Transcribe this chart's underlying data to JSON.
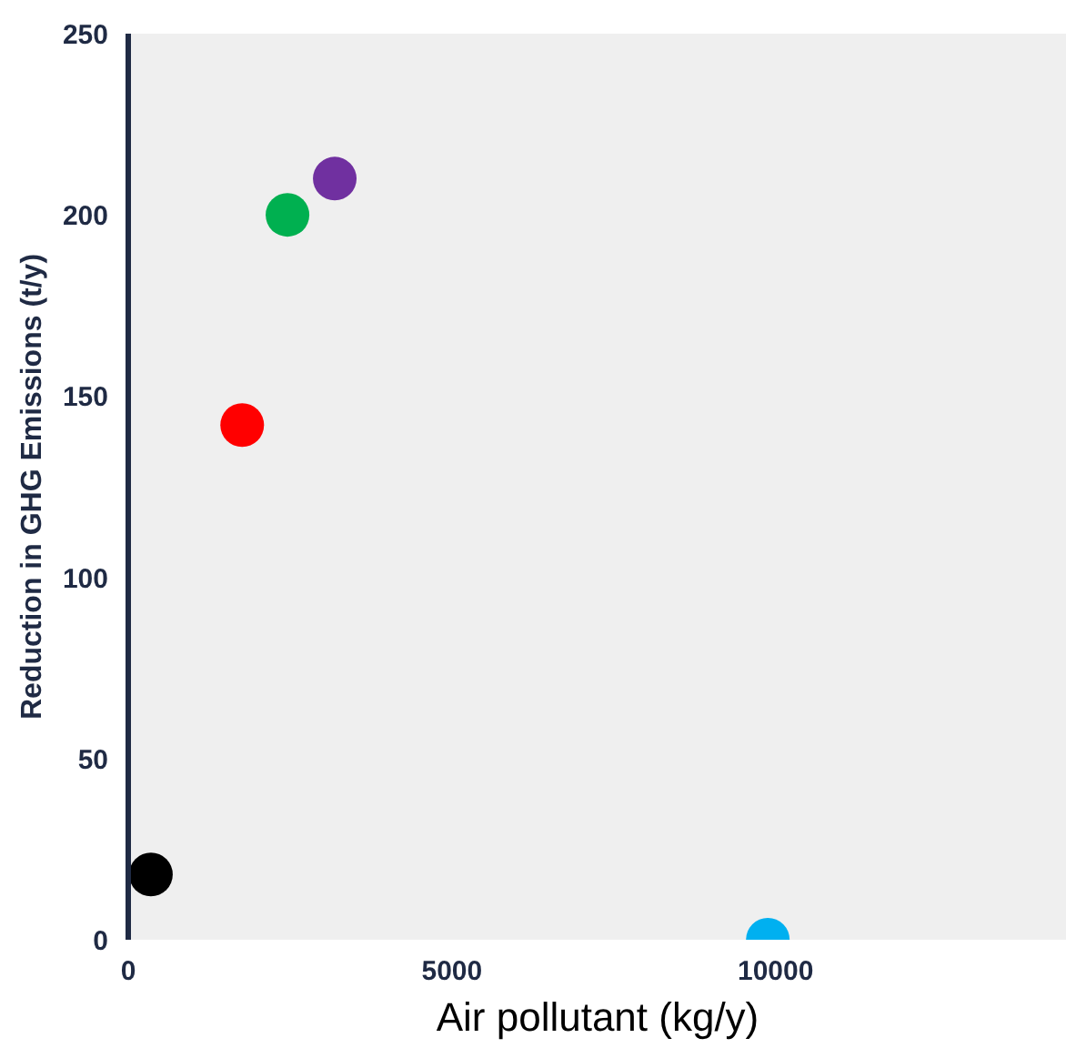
{
  "chart_data": {
    "type": "scatter",
    "xlabel": "Air pollutant (kg/y)",
    "ylabel": "Reduction in GHG Emissions (t/y)",
    "x": [
      350,
      1760,
      2460,
      3190,
      9880
    ],
    "values": [
      18,
      142,
      200,
      210,
      0
    ],
    "colors": [
      "#000000",
      "#ff0000",
      "#00b050",
      "#7030a0",
      "#00b0f0"
    ],
    "xlim": [
      0,
      14500
    ],
    "ylim": [
      0,
      250
    ],
    "xticks": [
      0,
      5000,
      10000
    ],
    "yticks": [
      0,
      50,
      100,
      150,
      200,
      250
    ],
    "grid": false,
    "marker": "circle"
  }
}
